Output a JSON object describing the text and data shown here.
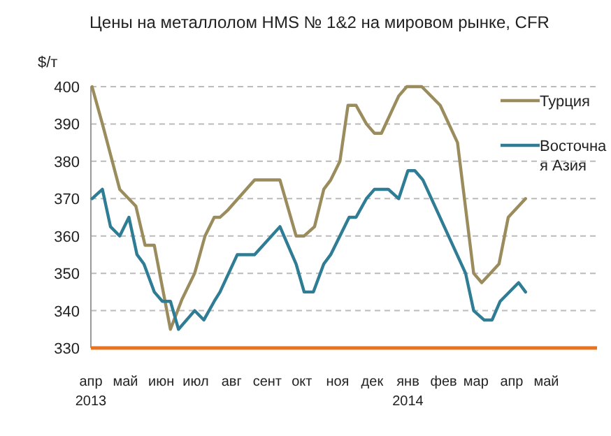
{
  "chart_data": {
    "type": "line",
    "title": "Цены на металлолом HMS № 1&2 на мировом рынке, CFR",
    "ylabel": "$/т",
    "xlim": [
      "2013-04-01",
      "2014-06-14"
    ],
    "ylim": [
      330,
      400
    ],
    "yticks": [
      330,
      340,
      350,
      360,
      370,
      380,
      390,
      400
    ],
    "xticks": [
      {
        "value": "2013-04-01",
        "label": "апр\n2013"
      },
      {
        "value": "2013-05-01",
        "label": "май"
      },
      {
        "value": "2013-06-01",
        "label": "июн"
      },
      {
        "value": "2013-07-01",
        "label": "июл"
      },
      {
        "value": "2013-08-01",
        "label": "авг"
      },
      {
        "value": "2013-09-01",
        "label": "сент"
      },
      {
        "value": "2013-10-01",
        "label": "окт"
      },
      {
        "value": "2013-11-01",
        "label": "ноя"
      },
      {
        "value": "2013-12-01",
        "label": "дек"
      },
      {
        "value": "2014-01-01",
        "label": "янв\n2014"
      },
      {
        "value": "2014-02-01",
        "label": "фев"
      },
      {
        "value": "2014-03-01",
        "label": "мар"
      },
      {
        "value": "2014-04-01",
        "label": "апр"
      },
      {
        "value": "2014-05-01",
        "label": "май"
      }
    ],
    "grid": "y",
    "legend": "top right",
    "line_style": "solid",
    "marker": "none",
    "series": [
      {
        "name": "Турция",
        "color": "#9a8c5c",
        "x": [
          "2013-04-02",
          "2013-04-11",
          "2013-04-26",
          "2013-05-10",
          "2013-05-18",
          "2013-05-26",
          "2013-06-09",
          "2013-06-19",
          "2013-06-30",
          "2013-07-09",
          "2013-07-17",
          "2013-07-22",
          "2013-07-29",
          "2013-08-21",
          "2013-09-12",
          "2013-09-26",
          "2013-10-03",
          "2013-10-12",
          "2013-10-20",
          "2013-10-26",
          "2013-11-03",
          "2013-11-10",
          "2013-11-17",
          "2013-11-26",
          "2013-12-03",
          "2013-12-09",
          "2013-12-24",
          "2013-12-31",
          "2014-01-13",
          "2014-01-29",
          "2014-02-13",
          "2014-02-27",
          "2014-03-06",
          "2014-03-21",
          "2014-03-29",
          "2014-04-13"
        ],
        "values": [
          400,
          390,
          372.5,
          368,
          357.5,
          357.5,
          335,
          343,
          350,
          360,
          365,
          365,
          367,
          375,
          375,
          360,
          360,
          362.5,
          372.5,
          375,
          380,
          395,
          395,
          390,
          387.5,
          387.5,
          397.5,
          400,
          400,
          395,
          385,
          350,
          347.5,
          352.5,
          365,
          370
        ]
      },
      {
        "name": "Восточная Азия",
        "color": "#2e7d94",
        "x": [
          "2013-04-02",
          "2013-04-11",
          "2013-04-18",
          "2013-04-26",
          "2013-05-04",
          "2013-05-11",
          "2013-05-17",
          "2013-05-26",
          "2013-06-02",
          "2013-06-09",
          "2013-06-16",
          "2013-06-30",
          "2013-07-08",
          "2013-07-17",
          "2013-07-22",
          "2013-08-06",
          "2013-08-21",
          "2013-09-12",
          "2013-09-26",
          "2013-10-03",
          "2013-10-11",
          "2013-10-20",
          "2013-10-26",
          "2013-11-11",
          "2013-11-17",
          "2013-11-26",
          "2013-12-03",
          "2013-12-15",
          "2013-12-24",
          "2014-01-01",
          "2014-01-07",
          "2014-01-14",
          "2014-02-20",
          "2014-02-27",
          "2014-03-08",
          "2014-03-15",
          "2014-03-22",
          "2014-04-07",
          "2014-04-13"
        ],
        "values": [
          370,
          372.5,
          362.5,
          360,
          365,
          355,
          352.5,
          345,
          342.5,
          342.5,
          335,
          340,
          337.5,
          342.5,
          345,
          355,
          355,
          362.5,
          352.5,
          345,
          345,
          352.5,
          355,
          365,
          365,
          370,
          372.5,
          372.5,
          370,
          377.5,
          377.5,
          375,
          350,
          340,
          337.5,
          337.5,
          342.5,
          347.5,
          345
        ]
      }
    ]
  }
}
